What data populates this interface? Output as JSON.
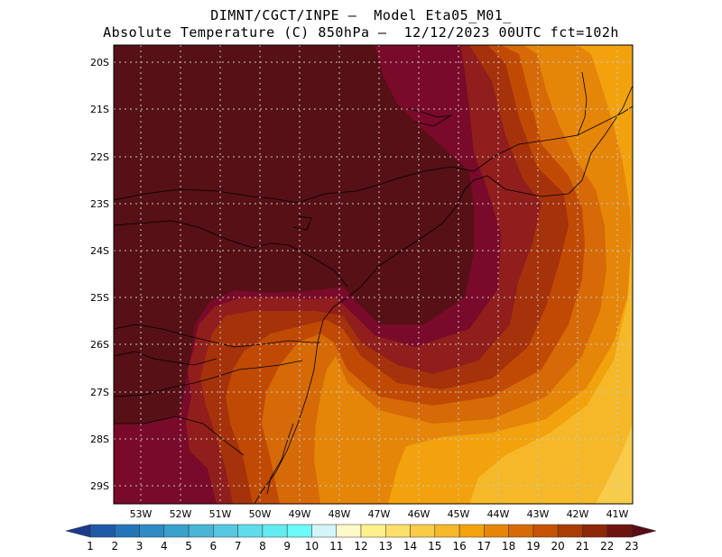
{
  "title_line1": "DIMNT/CGCT/INPE —  Model Eta05_M01_",
  "title_line2": "Absolute Temperature (C) 850hPa —  12/12/2023 00UTC fct=102h",
  "lat_labels": [
    "20S",
    "21S",
    "22S",
    "23S",
    "24S",
    "25S",
    "26S",
    "27S",
    "28S",
    "29S"
  ],
  "lon_labels": [
    "53W",
    "52W",
    "51W",
    "50W",
    "49W",
    "48W",
    "47W",
    "46W",
    "45W",
    "44W",
    "43W",
    "42W",
    "41W"
  ],
  "colorbar": {
    "labels": [
      "1",
      "2",
      "3",
      "4",
      "5",
      "6",
      "7",
      "8",
      "9",
      "10",
      "11",
      "12",
      "13",
      "14",
      "15",
      "16",
      "17",
      "18",
      "19",
      "20",
      "21",
      "22",
      "23"
    ],
    "colors": [
      "#1f3f8f",
      "#1f5aa8",
      "#2474b8",
      "#2e8bc4",
      "#3aa0cc",
      "#48b5d6",
      "#55c8e0",
      "#5fdcec",
      "#62ecf2",
      "#6cfafa",
      "#d2f5f8",
      "#fff8c8",
      "#fff08c",
      "#fde06a",
      "#f8cc48",
      "#f5b828",
      "#f2a20c",
      "#e58608",
      "#d66a06",
      "#c65204",
      "#aa3c06",
      "#8e2808",
      "#6e1410",
      "#5a0c18"
    ],
    "left_end_color": "#1a3a8c",
    "right_end_color": "#5a0c18"
  },
  "map": {
    "field_colors": {
      "deep": "#561016",
      "c23": "#7a0a2a",
      "c22": "#901e1c",
      "c21": "#a5320a",
      "c20": "#c04a04",
      "c19": "#d66a06",
      "c18": "#e58608",
      "c17": "#f2a20c",
      "c16": "#f5b828",
      "c15": "#f8cc48"
    },
    "grid_color": "#c8c8c8",
    "border_color": "#000000"
  }
}
